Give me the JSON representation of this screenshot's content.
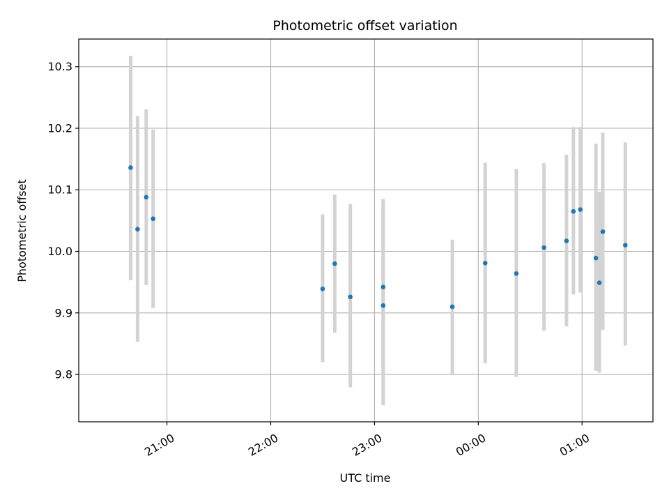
{
  "chart_data": {
    "type": "scatter",
    "title": "Photometric offset variation",
    "xlabel": "UTC time",
    "ylabel": "Photometric offset",
    "x_tick_labels": [
      "21:00",
      "22:00",
      "23:00",
      "00:00",
      "01:00"
    ],
    "y_tick_labels": [
      "9.8",
      "9.9",
      "10.0",
      "10.1",
      "10.2",
      "10.3"
    ],
    "x_ticks": [
      "21:00",
      "22:00",
      "23:00",
      "00:00",
      "01:00"
    ],
    "y_ticks": [
      9.8,
      9.9,
      10.0,
      10.1,
      10.2,
      10.3
    ],
    "xlim": [
      "20:09",
      "01:41"
    ],
    "ylim": [
      9.723,
      10.345
    ],
    "grid": true,
    "marker_color": "#1f77b4",
    "errorbar_color": "#d3d3d3",
    "points": [
      {
        "x": "20:39",
        "y": 10.136,
        "yerr_low": 9.953,
        "yerr_high": 10.318
      },
      {
        "x": "20:43",
        "y": 10.036,
        "yerr_low": 9.853,
        "yerr_high": 10.22
      },
      {
        "x": "20:48",
        "y": 10.088,
        "yerr_low": 9.945,
        "yerr_high": 10.231
      },
      {
        "x": "20:52",
        "y": 10.053,
        "yerr_low": 9.908,
        "yerr_high": 10.198
      },
      {
        "x": "22:30",
        "y": 9.939,
        "yerr_low": 9.82,
        "yerr_high": 10.06
      },
      {
        "x": "22:37",
        "y": 9.98,
        "yerr_low": 9.868,
        "yerr_high": 10.092
      },
      {
        "x": "22:46",
        "y": 9.926,
        "yerr_low": 9.779,
        "yerr_high": 10.077
      },
      {
        "x": "23:05",
        "y": 9.912,
        "yerr_low": 9.75,
        "yerr_high": 10.078
      },
      {
        "x": "23:05",
        "y": 9.942,
        "yerr_low": 9.8,
        "yerr_high": 10.085
      },
      {
        "x": "23:45",
        "y": 9.91,
        "yerr_low": 9.8,
        "yerr_high": 10.019
      },
      {
        "x": "00:04",
        "y": 9.981,
        "yerr_low": 9.818,
        "yerr_high": 10.144
      },
      {
        "x": "00:22",
        "y": 9.964,
        "yerr_low": 9.796,
        "yerr_high": 10.134
      },
      {
        "x": "00:38",
        "y": 10.006,
        "yerr_low": 9.871,
        "yerr_high": 10.143
      },
      {
        "x": "00:51",
        "y": 10.017,
        "yerr_low": 9.878,
        "yerr_high": 10.157
      },
      {
        "x": "00:55",
        "y": 10.065,
        "yerr_low": 9.93,
        "yerr_high": 10.202
      },
      {
        "x": "00:59",
        "y": 10.068,
        "yerr_low": 9.933,
        "yerr_high": 10.202
      },
      {
        "x": "01:08",
        "y": 9.989,
        "yerr_low": 9.806,
        "yerr_high": 10.175
      },
      {
        "x": "01:10",
        "y": 9.949,
        "yerr_low": 9.803,
        "yerr_high": 10.097
      },
      {
        "x": "01:12",
        "y": 10.032,
        "yerr_low": 9.872,
        "yerr_high": 10.193
      },
      {
        "x": "01:25",
        "y": 10.01,
        "yerr_low": 9.847,
        "yerr_high": 10.177
      }
    ]
  }
}
